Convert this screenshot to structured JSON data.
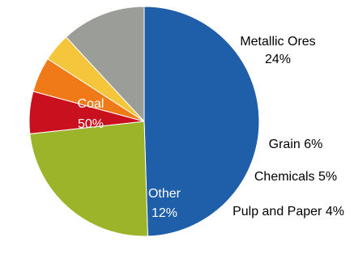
{
  "chart_data": {
    "type": "pie",
    "slices": [
      {
        "name": "Coal",
        "value": 50,
        "display": "50%",
        "color": "#1f5ea8"
      },
      {
        "name": "Metallic Ores",
        "value": 24,
        "display": "24%",
        "color": "#9bb42a"
      },
      {
        "name": "Grain",
        "value": 6,
        "display": "6%",
        "color": "#c8101e"
      },
      {
        "name": "Chemicals",
        "value": 5,
        "display": "5%",
        "color": "#f07a17"
      },
      {
        "name": "Pulp and Paper",
        "value": 4,
        "display": "4%",
        "color": "#f5c53b"
      },
      {
        "name": "Other",
        "value": 12,
        "display": "12%",
        "color": "#9b9d98"
      }
    ]
  }
}
